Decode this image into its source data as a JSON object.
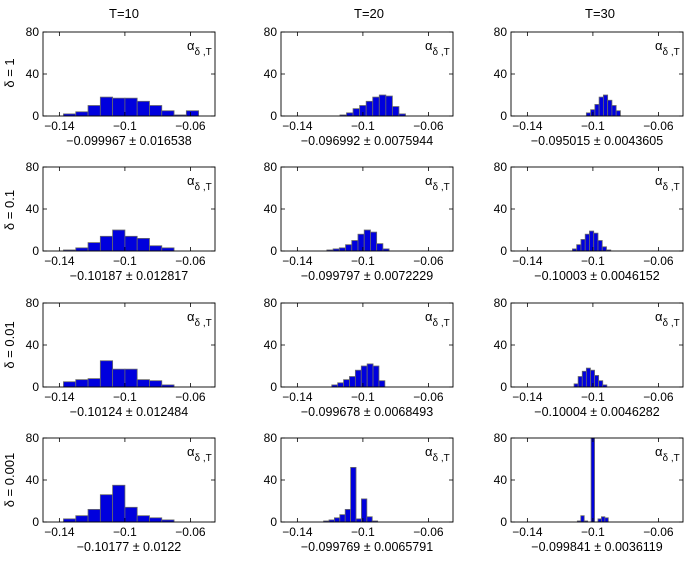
{
  "chart_data": {
    "type": "histogram-grid",
    "column_titles": [
      "T=10",
      "T=20",
      "T=30"
    ],
    "row_labels": [
      "δ = 1",
      "δ = 0.1",
      "δ = 0.01",
      "δ = 0.001"
    ],
    "annotation": {
      "main": "α",
      "sub": "δ ,T"
    },
    "xlim": [
      -0.15,
      -0.045
    ],
    "ylim": [
      0,
      80
    ],
    "xticks": [
      -0.14,
      -0.1,
      -0.06
    ],
    "xtick_labels": [
      "-0.14",
      "-0.1",
      "-0.06"
    ],
    "yticks": [
      0,
      40,
      80
    ],
    "ytick_labels": [
      "0",
      "40",
      "80"
    ],
    "bar_color": "#0000dd",
    "bar_edge_color": "#6a6a6a",
    "panels": [
      [
        {
          "stat": "−0.099967 ± 0.016538",
          "bin_start": -0.1375,
          "bin_width": 0.0075,
          "counts": [
            2,
            4,
            10,
            18,
            17,
            17,
            14,
            10,
            5,
            1,
            5
          ]
        },
        {
          "stat": "−0.096992 ± 0.0075944",
          "bin_start": -0.114,
          "bin_width": 0.004,
          "counts": [
            1,
            3,
            7,
            10,
            14,
            18,
            20,
            19,
            9,
            2
          ]
        },
        {
          "stat": "−0.095015 ± 0.0043605",
          "bin_start": -0.104,
          "bin_width": 0.0026,
          "counts": [
            3,
            6,
            11,
            18,
            20,
            15,
            10,
            5
          ]
        }
      ],
      [
        {
          "stat": "−0.10187 ± 0.012817",
          "bin_start": -0.1375,
          "bin_width": 0.0075,
          "counts": [
            1,
            3,
            8,
            14,
            20,
            14,
            12,
            5,
            3
          ]
        },
        {
          "stat": "−0.099797 ± 0.0072229",
          "bin_start": -0.122,
          "bin_width": 0.0038,
          "counts": [
            1,
            2,
            3,
            6,
            10,
            16,
            20,
            18,
            7,
            2
          ]
        },
        {
          "stat": "−0.10003 ± 0.0046152",
          "bin_start": -0.1125,
          "bin_width": 0.0026,
          "counts": [
            2,
            6,
            11,
            16,
            19,
            17,
            10,
            4,
            1
          ]
        }
      ],
      [
        {
          "stat": "−0.10124 ± 0.012484",
          "bin_start": -0.1375,
          "bin_width": 0.0075,
          "counts": [
            5,
            7,
            8,
            25,
            17,
            17,
            7,
            6,
            2
          ]
        },
        {
          "stat": "−0.099678 ± 0.0068493",
          "bin_start": -0.119,
          "bin_width": 0.0036,
          "counts": [
            2,
            4,
            7,
            10,
            16,
            20,
            22,
            20,
            6
          ]
        },
        {
          "stat": "−0.10004 ± 0.0046282",
          "bin_start": -0.1115,
          "bin_width": 0.0025,
          "counts": [
            3,
            10,
            15,
            18,
            16,
            11,
            6,
            2
          ]
        }
      ],
      [
        {
          "stat": "−0.10177 ± 0.0122",
          "bin_start": -0.1375,
          "bin_width": 0.0075,
          "counts": [
            3,
            6,
            12,
            26,
            35,
            14,
            6,
            4,
            2
          ]
        },
        {
          "stat": "−0.099769 ± 0.0065791",
          "bin_start": -0.124,
          "bin_width": 0.0033,
          "counts": [
            1,
            2,
            4,
            7,
            12,
            52,
            3,
            22,
            5,
            1
          ]
        },
        {
          "stat": "−0.099841 ± 0.0036119",
          "bin_start": -0.1095,
          "bin_width": 0.0021,
          "counts": [
            1,
            6,
            1,
            0,
            80,
            0,
            3,
            5,
            4
          ]
        }
      ]
    ]
  }
}
